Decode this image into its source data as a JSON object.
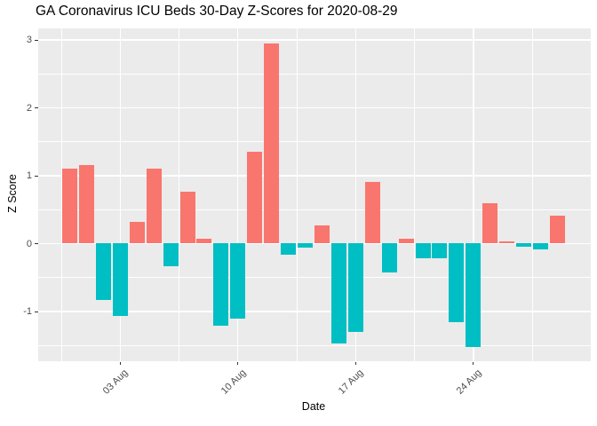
{
  "title": "GA Coronavirus ICU Beds 30-Day Z-Scores for 2020-08-29",
  "chart_data": {
    "type": "bar",
    "title": "GA Coronavirus ICU Beds 30-Day Z-Scores for 2020-08-29",
    "xlabel": "Date",
    "ylabel": "Z Score",
    "x": [
      "2020-07-31",
      "2020-08-01",
      "2020-08-02",
      "2020-08-03",
      "2020-08-04",
      "2020-08-05",
      "2020-08-06",
      "2020-08-07",
      "2020-08-08",
      "2020-08-09",
      "2020-08-10",
      "2020-08-11",
      "2020-08-12",
      "2020-08-13",
      "2020-08-14",
      "2020-08-15",
      "2020-08-16",
      "2020-08-17",
      "2020-08-18",
      "2020-08-19",
      "2020-08-20",
      "2020-08-21",
      "2020-08-22",
      "2020-08-23",
      "2020-08-24",
      "2020-08-25",
      "2020-08-26",
      "2020-08-27",
      "2020-08-28",
      "2020-08-29"
    ],
    "values": [
      1.1,
      1.16,
      -0.83,
      -1.07,
      0.32,
      1.1,
      -0.33,
      0.77,
      0.07,
      -1.21,
      -1.11,
      1.35,
      2.95,
      -0.17,
      -0.06,
      0.27,
      -1.47,
      -1.3,
      0.91,
      -0.42,
      0.07,
      -0.22,
      -0.22,
      -1.16,
      -1.52,
      0.6,
      0.03,
      -0.05,
      -0.08,
      0.41
    ],
    "ylim": [
      -1.74,
      3.17
    ],
    "yticks": [
      {
        "value": 3,
        "label": "3"
      },
      {
        "value": 2,
        "label": "2"
      },
      {
        "value": 1,
        "label": "1"
      },
      {
        "value": 0,
        "label": "0"
      },
      {
        "value": -1,
        "label": "-1"
      }
    ],
    "minor_yticks": [
      2.5,
      1.5,
      0.5,
      -0.5,
      -1.5
    ],
    "xticks": [
      {
        "index": 3,
        "label": "03 Aug"
      },
      {
        "index": 10,
        "label": "10 Aug"
      },
      {
        "index": 17,
        "label": "17 Aug"
      },
      {
        "index": 24,
        "label": "24 Aug"
      }
    ],
    "minor_xticks": [
      -0.5,
      6.5,
      13.5,
      20.5,
      27.5
    ],
    "grid": {
      "show_major": true,
      "show_minor": true
    },
    "legend": "none",
    "colors": {
      "positive_bar": "#F8766D",
      "negative_bar": "#00BFC4",
      "panel_background": "#EBEBEB",
      "gridline": "#FFFFFF",
      "axis_text": "#4D4D4D",
      "tick_mark": "#333333",
      "title_text": "#000000"
    }
  }
}
